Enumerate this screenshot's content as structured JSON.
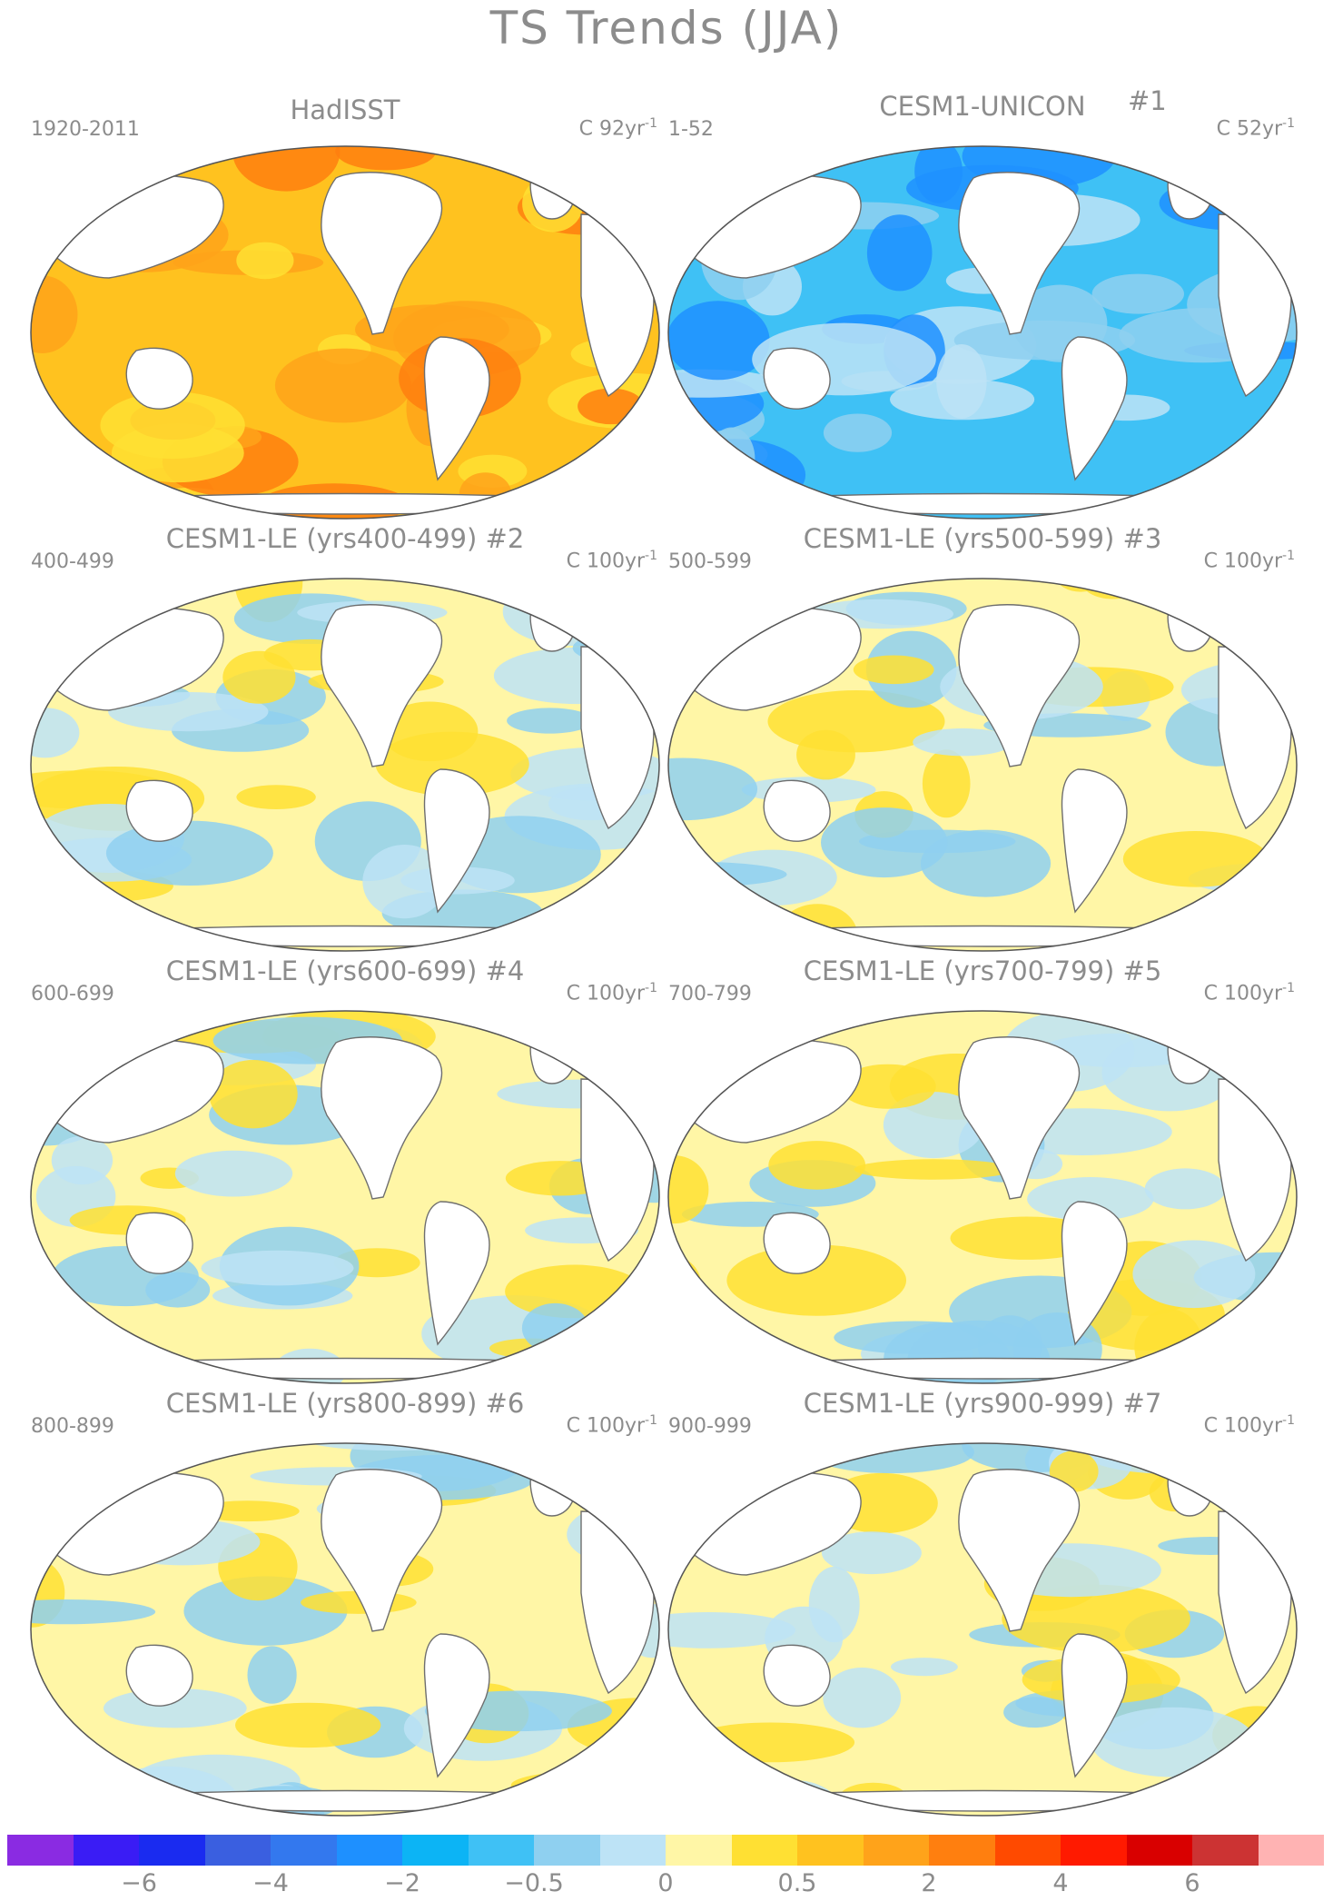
{
  "title": "TS Trends (JJA)",
  "panels": [
    {
      "name": "HadISST",
      "tag": "",
      "period": "1920-2011",
      "units_prefix": "C 92yr",
      "units_exp": "-1",
      "pattern": "warm"
    },
    {
      "name": "CESM1-UNICON",
      "tag": "#1",
      "period": "1-52",
      "units_prefix": "C 52yr",
      "units_exp": "-1",
      "pattern": "cool"
    },
    {
      "name": "CESM1-LE (yrs400-499) #2",
      "tag": "",
      "period": "400-499",
      "units_prefix": "C 100yr",
      "units_exp": "-1",
      "pattern": "mixed"
    },
    {
      "name": "CESM1-LE (yrs500-599) #3",
      "tag": "",
      "period": "500-599",
      "units_prefix": "C 100yr",
      "units_exp": "-1",
      "pattern": "mixed"
    },
    {
      "name": "CESM1-LE (yrs600-699) #4",
      "tag": "",
      "period": "600-699",
      "units_prefix": "C 100yr",
      "units_exp": "-1",
      "pattern": "mixed"
    },
    {
      "name": "CESM1-LE (yrs700-799) #5",
      "tag": "",
      "period": "700-799",
      "units_prefix": "C 100yr",
      "units_exp": "-1",
      "pattern": "mixed"
    },
    {
      "name": "CESM1-LE (yrs800-899) #6",
      "tag": "",
      "period": "800-899",
      "units_prefix": "C 100yr",
      "units_exp": "-1",
      "pattern": "mixed"
    },
    {
      "name": "CESM1-LE (yrs900-999) #7",
      "tag": "",
      "period": "900-999",
      "units_prefix": "C 100yr",
      "units_exp": "-1",
      "pattern": "mixed"
    }
  ],
  "colorbar": {
    "colors": [
      "#8a2be2",
      "#3a1cf5",
      "#1a2bf0",
      "#3a5fe0",
      "#3378ee",
      "#1e90ff",
      "#0cb4f5",
      "#3fc1f5",
      "#8fd0f0",
      "#bde3f6",
      "#fff6a6",
      "#ffe033",
      "#ffc21f",
      "#ffa31a",
      "#ff7f0f",
      "#ff4a00",
      "#ff1a00",
      "#d90000",
      "#cc3333",
      "#ffb3b3"
    ],
    "labels": [
      {
        "text": "−6",
        "slot": 2
      },
      {
        "text": "−4",
        "slot": 4
      },
      {
        "text": "−2",
        "slot": 6
      },
      {
        "text": "−0.5",
        "slot": 8
      },
      {
        "text": "0",
        "slot": 10
      },
      {
        "text": "0.5",
        "slot": 12
      },
      {
        "text": "2",
        "slot": 14
      },
      {
        "text": "4",
        "slot": 16
      },
      {
        "text": "6",
        "slot": 18
      }
    ]
  },
  "palette": {
    "land": "#ffffff",
    "coast": "#6e6e6e",
    "warm": [
      "#ffc21f",
      "#ffa31a",
      "#ffe033",
      "#ff7f0f"
    ],
    "cool": [
      "#3fc1f5",
      "#8fd0f0",
      "#1e90ff",
      "#bde3f6"
    ],
    "mixed": [
      "#fff6a6",
      "#bde3f6",
      "#ffe033",
      "#8fd0f0"
    ]
  }
}
